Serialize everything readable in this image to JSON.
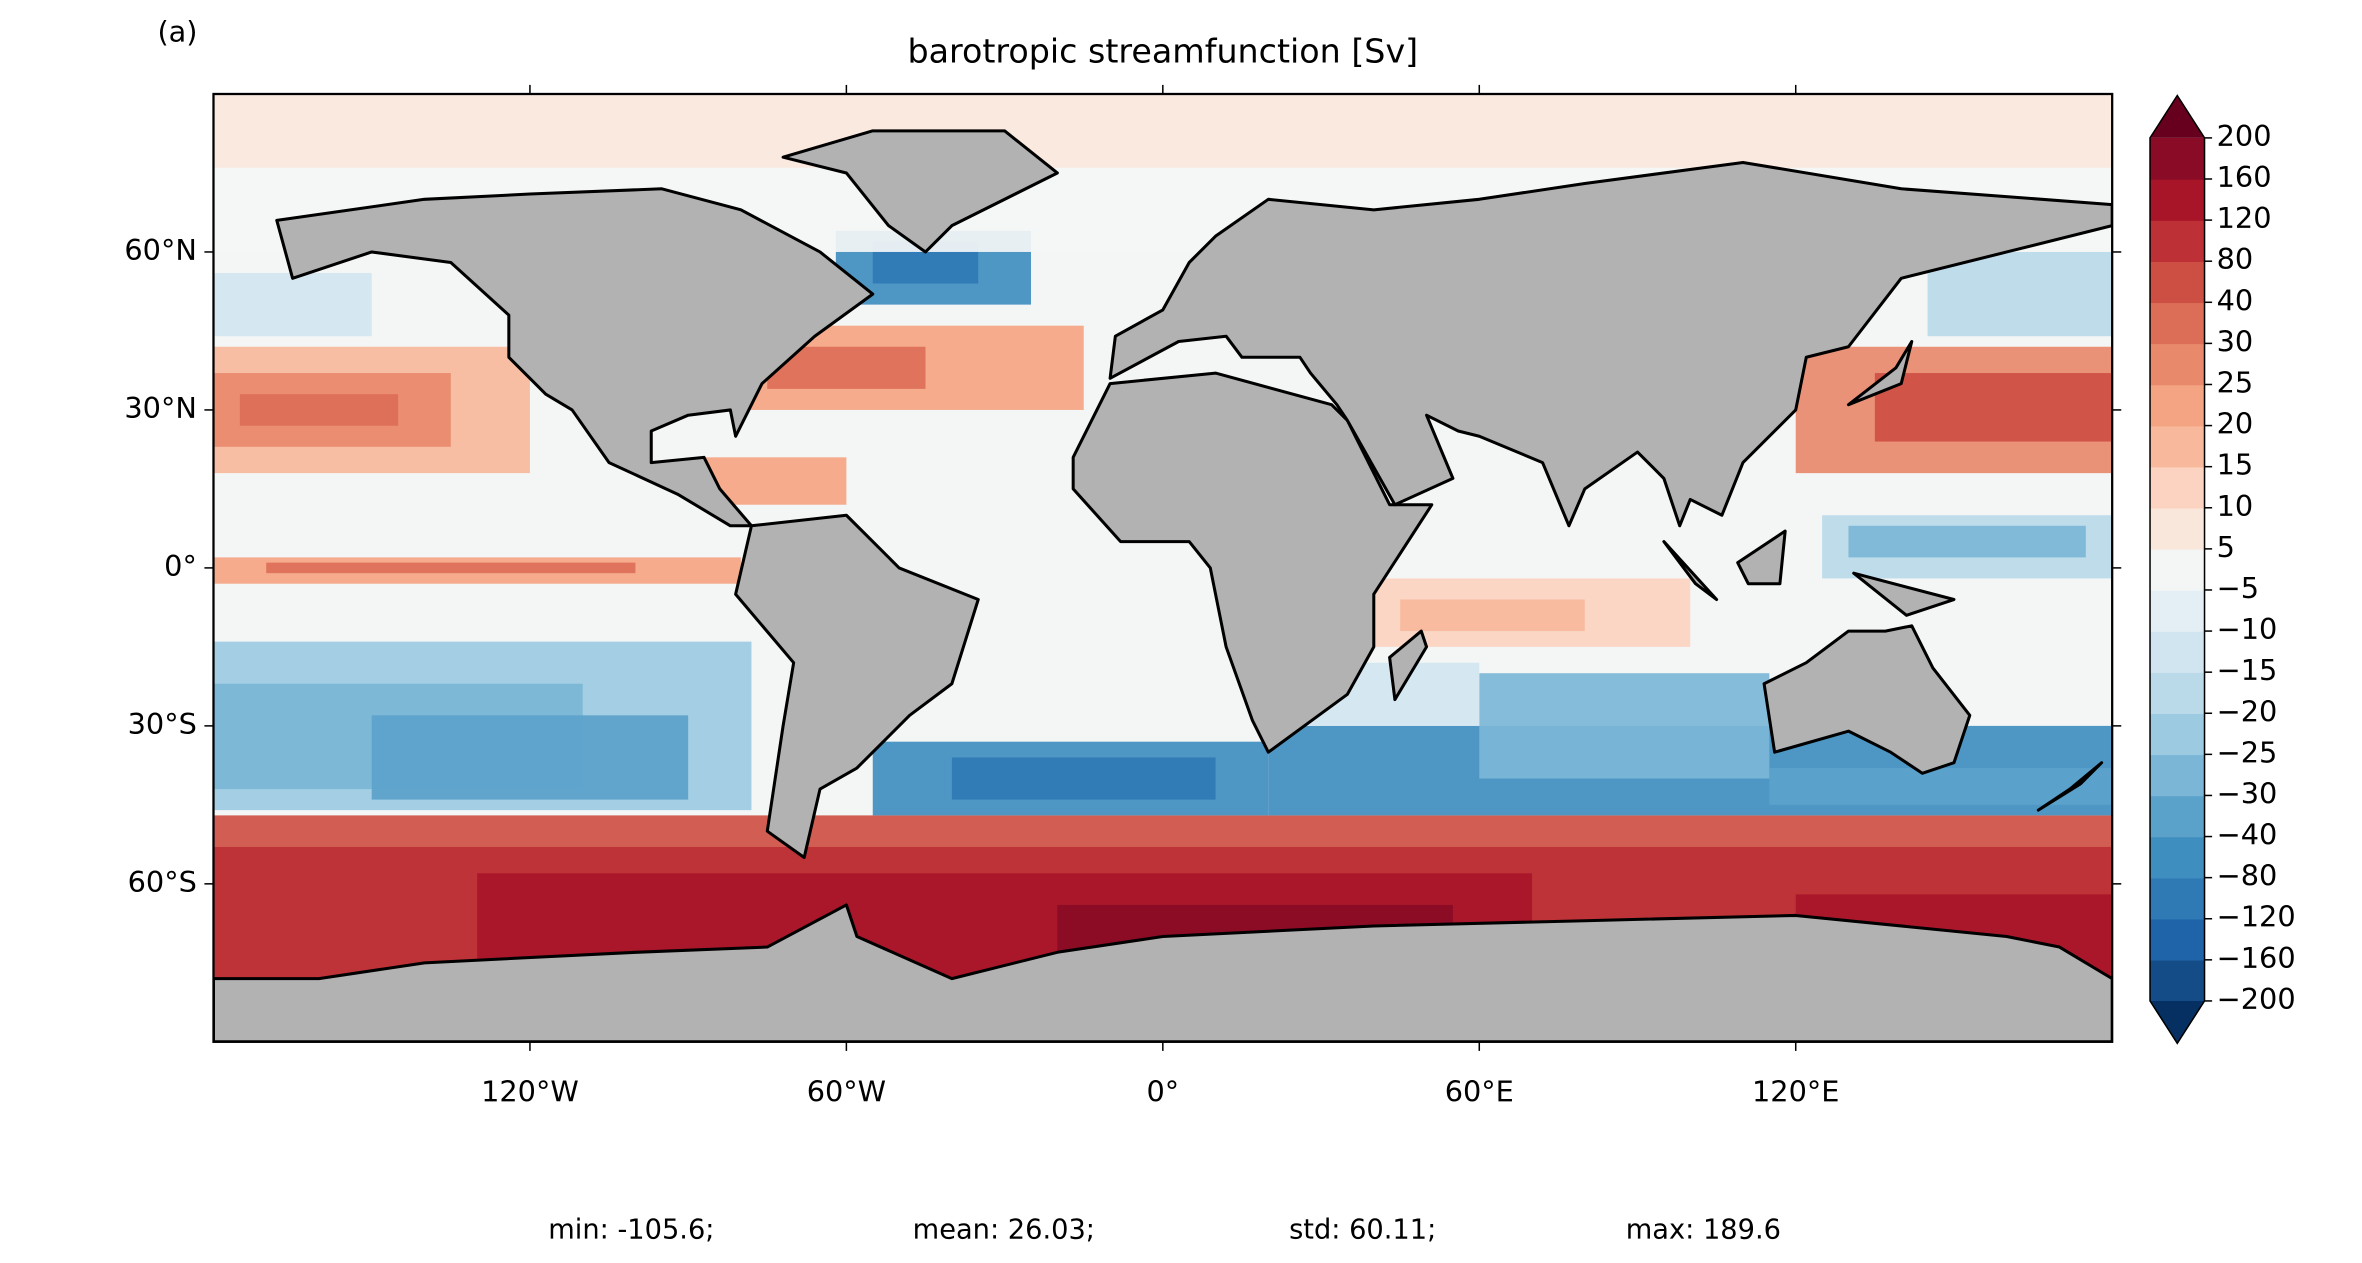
{
  "panel_label": "(a)",
  "chart_data": {
    "type": "map",
    "title": "barotropic streamfunction [Sv]",
    "xlim": [
      -180,
      180
    ],
    "ylim": [
      -90,
      90
    ],
    "xticks": [
      {
        "value": -120,
        "label": "120°W"
      },
      {
        "value": -60,
        "label": "60°W"
      },
      {
        "value": 0,
        "label": "0°"
      },
      {
        "value": 60,
        "label": "60°E"
      },
      {
        "value": 120,
        "label": "120°E"
      }
    ],
    "yticks": [
      {
        "value": -60,
        "label": "60°S"
      },
      {
        "value": -30,
        "label": "30°S"
      },
      {
        "value": 0,
        "label": "0°"
      },
      {
        "value": 30,
        "label": "30°N"
      },
      {
        "value": 60,
        "label": "60°N"
      }
    ],
    "colorbar": {
      "levels": [
        {
          "value": -200,
          "label": "−200"
        },
        {
          "value": -160,
          "label": "−160"
        },
        {
          "value": -120,
          "label": "−120"
        },
        {
          "value": -80,
          "label": "−80"
        },
        {
          "value": -40,
          "label": "−40"
        },
        {
          "value": -30,
          "label": "−30"
        },
        {
          "value": -25,
          "label": "−25"
        },
        {
          "value": -20,
          "label": "−20"
        },
        {
          "value": -15,
          "label": "−15"
        },
        {
          "value": -10,
          "label": "−10"
        },
        {
          "value": -5,
          "label": "−5"
        },
        5,
        10,
        15,
        20,
        25,
        30,
        40,
        80,
        120,
        160,
        200
      ],
      "colors": [
        "#134c87",
        "#1f63a8",
        "#2f79b5",
        "#3f8ec0",
        "#5ba2cb",
        "#7bb6d6",
        "#9ccae1",
        "#bad9e9",
        "#d1e5f0",
        "#e3eef5",
        "#f4f6f6",
        "#fae7dc",
        "#fbd3c0",
        "#f7b89c",
        "#f4a482",
        "#e8896c",
        "#dc6e57",
        "#cd4f44",
        "#bc3036",
        "#a81529",
        "#8a0b25"
      ],
      "under_color": "#053061",
      "over_color": "#67001f"
    }
  },
  "stats": [
    "min: -105.6;",
    "mean: 26.03;",
    "std: 60.11;",
    "max: 189.6"
  ]
}
